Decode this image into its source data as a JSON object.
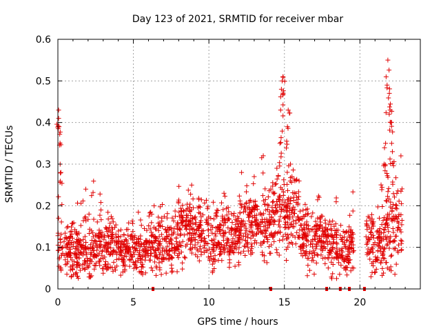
{
  "chart_data": {
    "type": "scatter",
    "title": "Day 123 of 2021, SRMTID for receiver mbar",
    "xlabel": "GPS time / hours",
    "ylabel": "SRMTID / TECUs",
    "xlim": [
      0,
      24
    ],
    "ylim": [
      0,
      0.6
    ],
    "x_ticks": [
      0,
      5,
      10,
      15,
      20
    ],
    "x_tick_labels": [
      "0",
      "5",
      "10",
      "15",
      "20"
    ],
    "y_ticks": [
      0,
      0.1,
      0.2,
      0.3,
      0.4,
      0.5,
      0.6
    ],
    "y_tick_labels": [
      "0",
      "0.1",
      "0.2",
      "0.3",
      "0.4",
      "0.5",
      "0.6"
    ],
    "grid": true,
    "marker": "+",
    "series_color": "#e00000",
    "segments": [
      {
        "x": [
          0.0,
          2.2
        ],
        "base": 0.09,
        "spread": 0.05
      },
      {
        "x": [
          2.2,
          4.0
        ],
        "base": 0.1,
        "spread": 0.05
      },
      {
        "x": [
          4.0,
          6.0
        ],
        "base": 0.09,
        "spread": 0.04
      },
      {
        "x": [
          6.0,
          8.0
        ],
        "base": 0.11,
        "spread": 0.05
      },
      {
        "x": [
          8.0,
          10.0
        ],
        "base": 0.14,
        "spread": 0.05
      },
      {
        "x": [
          10.0,
          12.0
        ],
        "base": 0.12,
        "spread": 0.05
      },
      {
        "x": [
          12.0,
          14.2
        ],
        "base": 0.15,
        "spread": 0.05
      },
      {
        "x": [
          14.2,
          16.0
        ],
        "base": 0.18,
        "spread": 0.06
      },
      {
        "x": [
          16.0,
          18.0
        ],
        "base": 0.12,
        "spread": 0.05
      },
      {
        "x": [
          18.0,
          19.6
        ],
        "base": 0.1,
        "spread": 0.05
      },
      {
        "x": [
          20.4,
          21.6
        ],
        "base": 0.1,
        "spread": 0.05
      },
      {
        "x": [
          21.6,
          22.8
        ],
        "base": 0.15,
        "spread": 0.07
      }
    ],
    "peaks": [
      {
        "x": 0.05,
        "y": 0.43
      },
      {
        "x": 0.05,
        "y": 0.41
      },
      {
        "x": 0.08,
        "y": 0.39
      },
      {
        "x": 0.15,
        "y": 0.3
      },
      {
        "x": 0.2,
        "y": 0.28
      },
      {
        "x": 1.85,
        "y": 0.24
      },
      {
        "x": 11.0,
        "y": 0.23
      },
      {
        "x": 13.0,
        "y": 0.27
      },
      {
        "x": 13.6,
        "y": 0.32
      },
      {
        "x": 14.1,
        "y": 0.24
      },
      {
        "x": 14.5,
        "y": 0.29
      },
      {
        "x": 14.7,
        "y": 0.35
      },
      {
        "x": 14.75,
        "y": 0.43
      },
      {
        "x": 14.8,
        "y": 0.48
      },
      {
        "x": 14.85,
        "y": 0.5
      },
      {
        "x": 14.9,
        "y": 0.51
      },
      {
        "x": 15.2,
        "y": 0.39
      },
      {
        "x": 15.25,
        "y": 0.43
      },
      {
        "x": 15.4,
        "y": 0.3
      },
      {
        "x": 15.5,
        "y": 0.27
      },
      {
        "x": 17.3,
        "y": 0.22
      },
      {
        "x": 21.4,
        "y": 0.25
      },
      {
        "x": 21.6,
        "y": 0.3
      },
      {
        "x": 21.7,
        "y": 0.35
      },
      {
        "x": 21.8,
        "y": 0.49
      },
      {
        "x": 21.85,
        "y": 0.55
      },
      {
        "x": 21.95,
        "y": 0.47
      },
      {
        "x": 22.0,
        "y": 0.43
      },
      {
        "x": 22.05,
        "y": 0.4
      },
      {
        "x": 22.1,
        "y": 0.35
      },
      {
        "x": 22.15,
        "y": 0.33
      }
    ],
    "baseline_marks_x": [
      6.3,
      14.1,
      17.8,
      18.7,
      19.3,
      20.3
    ]
  }
}
